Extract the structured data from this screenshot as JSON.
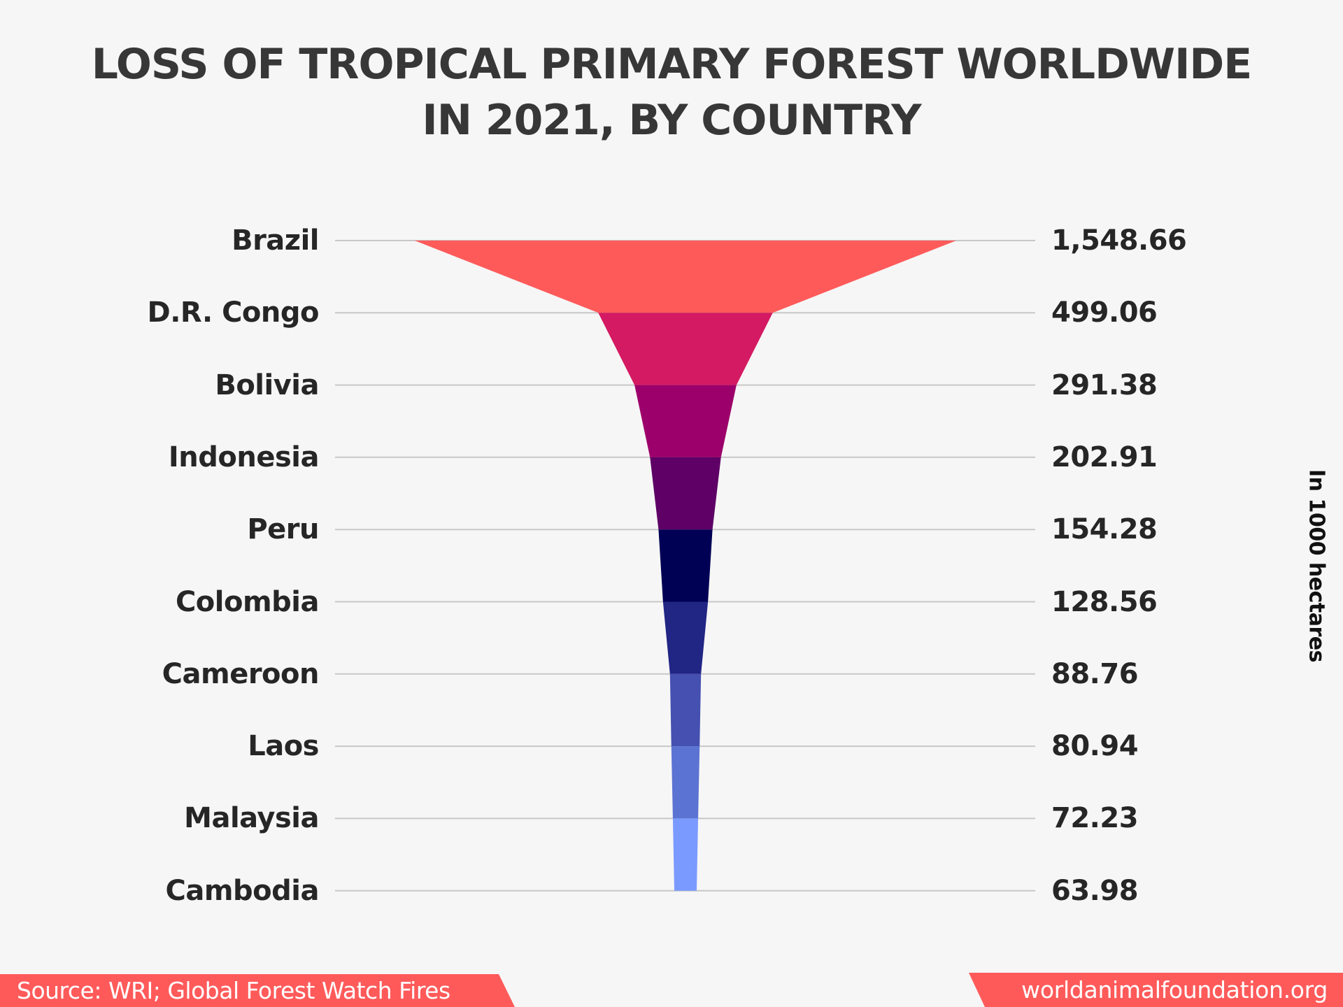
{
  "title": {
    "line1": "LOSS OF TROPICAL PRIMARY FOREST WORLDWIDE",
    "line2": "IN 2021, BY COUNTRY"
  },
  "unit_label": "In 1000 hectares",
  "footer": {
    "source": "Source: WRI; Global Forest Watch Fires",
    "site": "worldanimalfoundation.org"
  },
  "colors": {
    "background": "#F6F6F6",
    "text": "#262626",
    "title": "#373737",
    "gridline": "#C8C8C8",
    "footer_bar": "#FF5A5A",
    "footer_text": "#FFFFFF"
  },
  "rows": [
    {
      "country": "Brazil",
      "value_label": "1,548.66"
    },
    {
      "country": "D.R. Congo",
      "value_label": "499.06"
    },
    {
      "country": "Bolivia",
      "value_label": "291.38"
    },
    {
      "country": "Indonesia",
      "value_label": "202.91"
    },
    {
      "country": "Peru",
      "value_label": "154.28"
    },
    {
      "country": "Colombia",
      "value_label": "128.56"
    },
    {
      "country": "Cameroon",
      "value_label": "88.76"
    },
    {
      "country": "Laos",
      "value_label": "80.94"
    },
    {
      "country": "Malaysia",
      "value_label": "72.23"
    },
    {
      "country": "Cambodia",
      "value_label": "63.98"
    }
  ],
  "chart_data": {
    "type": "funnel",
    "title": "LOSS OF TROPICAL PRIMARY FOREST WORLDWIDE IN 2021, BY COUNTRY",
    "xlabel": "",
    "ylabel": "In 1000 hectares",
    "unit": "1000 hectares",
    "categories": [
      "Brazil",
      "D.R. Congo",
      "Bolivia",
      "Indonesia",
      "Peru",
      "Colombia",
      "Cameroon",
      "Laos",
      "Malaysia",
      "Cambodia"
    ],
    "values": [
      1548.66,
      499.06,
      291.38,
      202.91,
      154.28,
      128.56,
      88.76,
      80.94,
      72.23,
      63.98
    ],
    "segment_colors": [
      "#FF5A5A",
      "#D41A62",
      "#9C006A",
      "#5E0066",
      "#000055",
      "#212584",
      "#4550B0",
      "#5B73D2",
      "#7B9AFF"
    ],
    "grid": true,
    "source": "WRI; Global Forest Watch Fires"
  }
}
